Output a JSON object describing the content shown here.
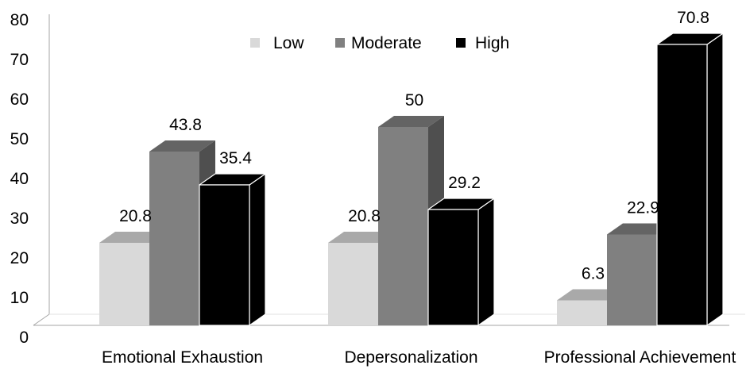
{
  "chart_data": {
    "type": "bar",
    "categories": [
      "Emotional Exhaustion",
      "Depersonalization",
      "Professional Achievement"
    ],
    "series": [
      {
        "name": "Low",
        "values": [
          20.8,
          20.8,
          6.3
        ],
        "color": "#d9d9d9"
      },
      {
        "name": "Moderate",
        "values": [
          43.8,
          50,
          22.9
        ],
        "color": "#808080"
      },
      {
        "name": "High",
        "values": [
          35.4,
          29.2,
          70.8
        ],
        "color": "#000000"
      }
    ],
    "data_labels": [
      [
        "20.8",
        "43.8",
        "35.4"
      ],
      [
        "20.8",
        "50",
        "29.2"
      ],
      [
        "6.3",
        "22.9",
        "70.8"
      ]
    ],
    "y_ticks": [
      "0",
      "10",
      "20",
      "30",
      "40",
      "50",
      "60",
      "70",
      "80"
    ],
    "ylim": [
      0,
      80
    ],
    "three_d": true,
    "grid": false,
    "legend_position": "top-center"
  }
}
